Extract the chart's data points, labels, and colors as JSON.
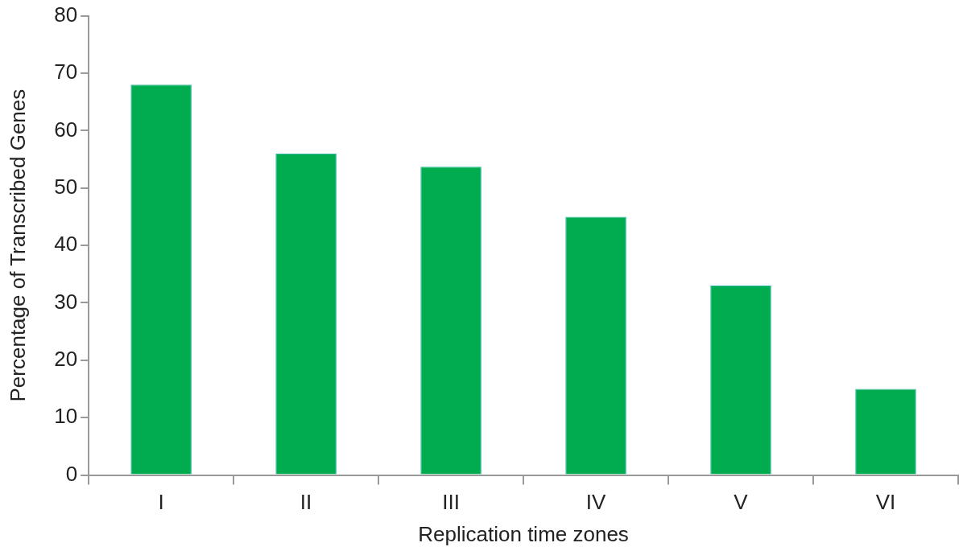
{
  "chart_data": {
    "type": "bar",
    "xlabel": "Replication time zones",
    "ylabel": "Percentage of Transcribed Genes",
    "categories": [
      "I",
      "II",
      "III",
      "IV",
      "V",
      "VI"
    ],
    "values": [
      68,
      56,
      53.7,
      45,
      33,
      15
    ],
    "color": "#00ac4f",
    "ylim": [
      0,
      80
    ],
    "yticks": [
      0,
      10,
      20,
      30,
      40,
      50,
      60,
      70,
      80
    ],
    "grid": false,
    "legend": false
  }
}
